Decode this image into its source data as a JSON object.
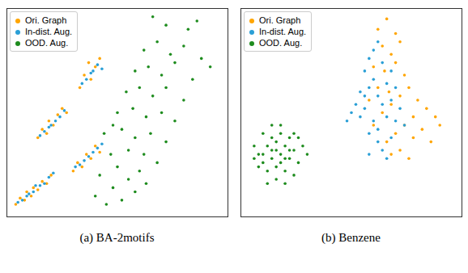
{
  "chart_data": [
    {
      "type": "scatter",
      "title": "(a) BA-2motifs",
      "xlim": [
        0,
        100
      ],
      "ylim": [
        0,
        100
      ],
      "tick_labels": false,
      "legend": "upper left",
      "series": [
        {
          "name": "Ori. Graph",
          "color": "#ffa500",
          "values": [
            [
              4,
              6
            ],
            [
              6,
              9
            ],
            [
              8,
              8
            ],
            [
              9,
              12
            ],
            [
              11,
              10
            ],
            [
              12,
              14
            ],
            [
              14,
              13
            ],
            [
              16,
              17
            ],
            [
              18,
              16
            ],
            [
              20,
              20
            ],
            [
              14,
              38
            ],
            [
              16,
              42
            ],
            [
              18,
              40
            ],
            [
              19,
              46
            ],
            [
              21,
              44
            ],
            [
              23,
              49
            ],
            [
              25,
              52
            ],
            [
              27,
              50
            ],
            [
              30,
              22
            ],
            [
              32,
              26
            ],
            [
              34,
              24
            ],
            [
              36,
              30
            ],
            [
              38,
              28
            ],
            [
              40,
              34
            ],
            [
              42,
              31
            ],
            [
              33,
              62
            ],
            [
              35,
              68
            ],
            [
              38,
              66
            ],
            [
              40,
              72
            ],
            [
              42,
              76
            ],
            [
              37,
              74
            ]
          ]
        },
        {
          "name": "In-dist. Aug.",
          "color": "#2a9fd6",
          "values": [
            [
              5,
              7
            ],
            [
              7,
              8
            ],
            [
              9,
              10
            ],
            [
              10,
              11
            ],
            [
              12,
              12
            ],
            [
              13,
              15
            ],
            [
              15,
              15
            ],
            [
              17,
              16
            ],
            [
              19,
              19
            ],
            [
              21,
              21
            ],
            [
              15,
              39
            ],
            [
              17,
              41
            ],
            [
              19,
              43
            ],
            [
              20,
              44
            ],
            [
              22,
              46
            ],
            [
              24,
              48
            ],
            [
              26,
              51
            ],
            [
              31,
              24
            ],
            [
              33,
              25
            ],
            [
              35,
              27
            ],
            [
              37,
              29
            ],
            [
              39,
              31
            ],
            [
              41,
              33
            ],
            [
              43,
              35
            ],
            [
              34,
              64
            ],
            [
              36,
              66
            ],
            [
              38,
              69
            ],
            [
              39,
              70
            ],
            [
              41,
              73
            ],
            [
              43,
              71
            ]
          ]
        },
        {
          "name": "OOD. Aug.",
          "color": "#1e8c1e",
          "values": [
            [
              40,
              10
            ],
            [
              45,
              6
            ],
            [
              48,
              14
            ],
            [
              52,
              8
            ],
            [
              55,
              18
            ],
            [
              58,
              12
            ],
            [
              50,
              24
            ],
            [
              60,
              22
            ],
            [
              63,
              16
            ],
            [
              47,
              30
            ],
            [
              55,
              32
            ],
            [
              62,
              30
            ],
            [
              68,
              26
            ],
            [
              44,
              40
            ],
            [
              52,
              42
            ],
            [
              58,
              38
            ],
            [
              65,
              40
            ],
            [
              72,
              36
            ],
            [
              50,
              50
            ],
            [
              57,
              52
            ],
            [
              63,
              48
            ],
            [
              70,
              50
            ],
            [
              76,
              46
            ],
            [
              54,
              60
            ],
            [
              60,
              62
            ],
            [
              66,
              58
            ],
            [
              72,
              62
            ],
            [
              80,
              56
            ],
            [
              58,
              70
            ],
            [
              64,
              72
            ],
            [
              70,
              68
            ],
            [
              76,
              74
            ],
            [
              84,
              66
            ],
            [
              62,
              80
            ],
            [
              68,
              84
            ],
            [
              74,
              78
            ],
            [
              80,
              82
            ],
            [
              88,
              76
            ],
            [
              72,
              92
            ],
            [
              82,
              90
            ],
            [
              92,
              72
            ],
            [
              66,
              96
            ],
            [
              86,
              94
            ],
            [
              48,
              44
            ],
            [
              42,
              20
            ]
          ]
        }
      ]
    },
    {
      "type": "scatter",
      "title": "(b) Benzene",
      "xlim": [
        0,
        100
      ],
      "ylim": [
        0,
        100
      ],
      "tick_labels": false,
      "legend": "upper left",
      "series": [
        {
          "name": "Ori. Graph",
          "color": "#ffa500",
          "values": [
            [
              62,
              90
            ],
            [
              66,
              95
            ],
            [
              70,
              88
            ],
            [
              64,
              82
            ],
            [
              68,
              78
            ],
            [
              72,
              84
            ],
            [
              60,
              72
            ],
            [
              65,
              70
            ],
            [
              70,
              74
            ],
            [
              74,
              68
            ],
            [
              62,
              62
            ],
            [
              67,
              60
            ],
            [
              72,
              58
            ],
            [
              76,
              62
            ],
            [
              80,
              56
            ],
            [
              84,
              52
            ],
            [
              88,
              48
            ],
            [
              78,
              48
            ],
            [
              74,
              44
            ],
            [
              70,
              40
            ],
            [
              66,
              36
            ],
            [
              72,
              32
            ],
            [
              78,
              38
            ],
            [
              82,
              42
            ],
            [
              86,
              36
            ],
            [
              64,
              50
            ],
            [
              68,
              54
            ],
            [
              90,
              44
            ],
            [
              76,
              28
            ],
            [
              68,
              30
            ],
            [
              58,
              56
            ],
            [
              60,
              44
            ]
          ]
        },
        {
          "name": "In-dist. Aug.",
          "color": "#2a9fd6",
          "values": [
            [
              50,
              50
            ],
            [
              48,
              46
            ],
            [
              52,
              54
            ],
            [
              54,
              48
            ],
            [
              56,
              58
            ],
            [
              58,
              62
            ],
            [
              60,
              66
            ],
            [
              56,
              70
            ],
            [
              58,
              76
            ],
            [
              60,
              80
            ],
            [
              62,
              84
            ],
            [
              64,
              74
            ],
            [
              62,
              58
            ],
            [
              64,
              54
            ],
            [
              66,
              48
            ],
            [
              60,
              46
            ],
            [
              58,
              40
            ],
            [
              62,
              36
            ],
            [
              64,
              32
            ],
            [
              66,
              28
            ],
            [
              68,
              38
            ],
            [
              70,
              46
            ],
            [
              68,
              56
            ],
            [
              66,
              64
            ],
            [
              70,
              62
            ],
            [
              72,
              52
            ],
            [
              74,
              44
            ],
            [
              56,
              52
            ],
            [
              54,
              60
            ],
            [
              58,
              30
            ],
            [
              62,
              42
            ],
            [
              68,
              70
            ]
          ]
        },
        {
          "name": "OOD. Aug.",
          "color": "#1e8c1e",
          "values": [
            [
              8,
              30
            ],
            [
              10,
              26
            ],
            [
              12,
              34
            ],
            [
              14,
              28
            ],
            [
              16,
              32
            ],
            [
              18,
              30
            ],
            [
              20,
              34
            ],
            [
              22,
              28
            ],
            [
              24,
              32
            ],
            [
              12,
              22
            ],
            [
              16,
              24
            ],
            [
              20,
              22
            ],
            [
              14,
              38
            ],
            [
              18,
              40
            ],
            [
              22,
              38
            ],
            [
              6,
              34
            ],
            [
              10,
              40
            ],
            [
              26,
              26
            ],
            [
              28,
              34
            ],
            [
              16,
              18
            ],
            [
              20,
              16
            ],
            [
              12,
              16
            ],
            [
              24,
              40
            ],
            [
              8,
              24
            ],
            [
              18,
              26
            ],
            [
              14,
              32
            ],
            [
              22,
              32
            ],
            [
              16,
              36
            ],
            [
              20,
              28
            ],
            [
              10,
              30
            ],
            [
              26,
              38
            ],
            [
              30,
              30
            ],
            [
              6,
              28
            ],
            [
              18,
              44
            ],
            [
              14,
              44
            ],
            [
              24,
              20
            ]
          ]
        }
      ]
    }
  ]
}
